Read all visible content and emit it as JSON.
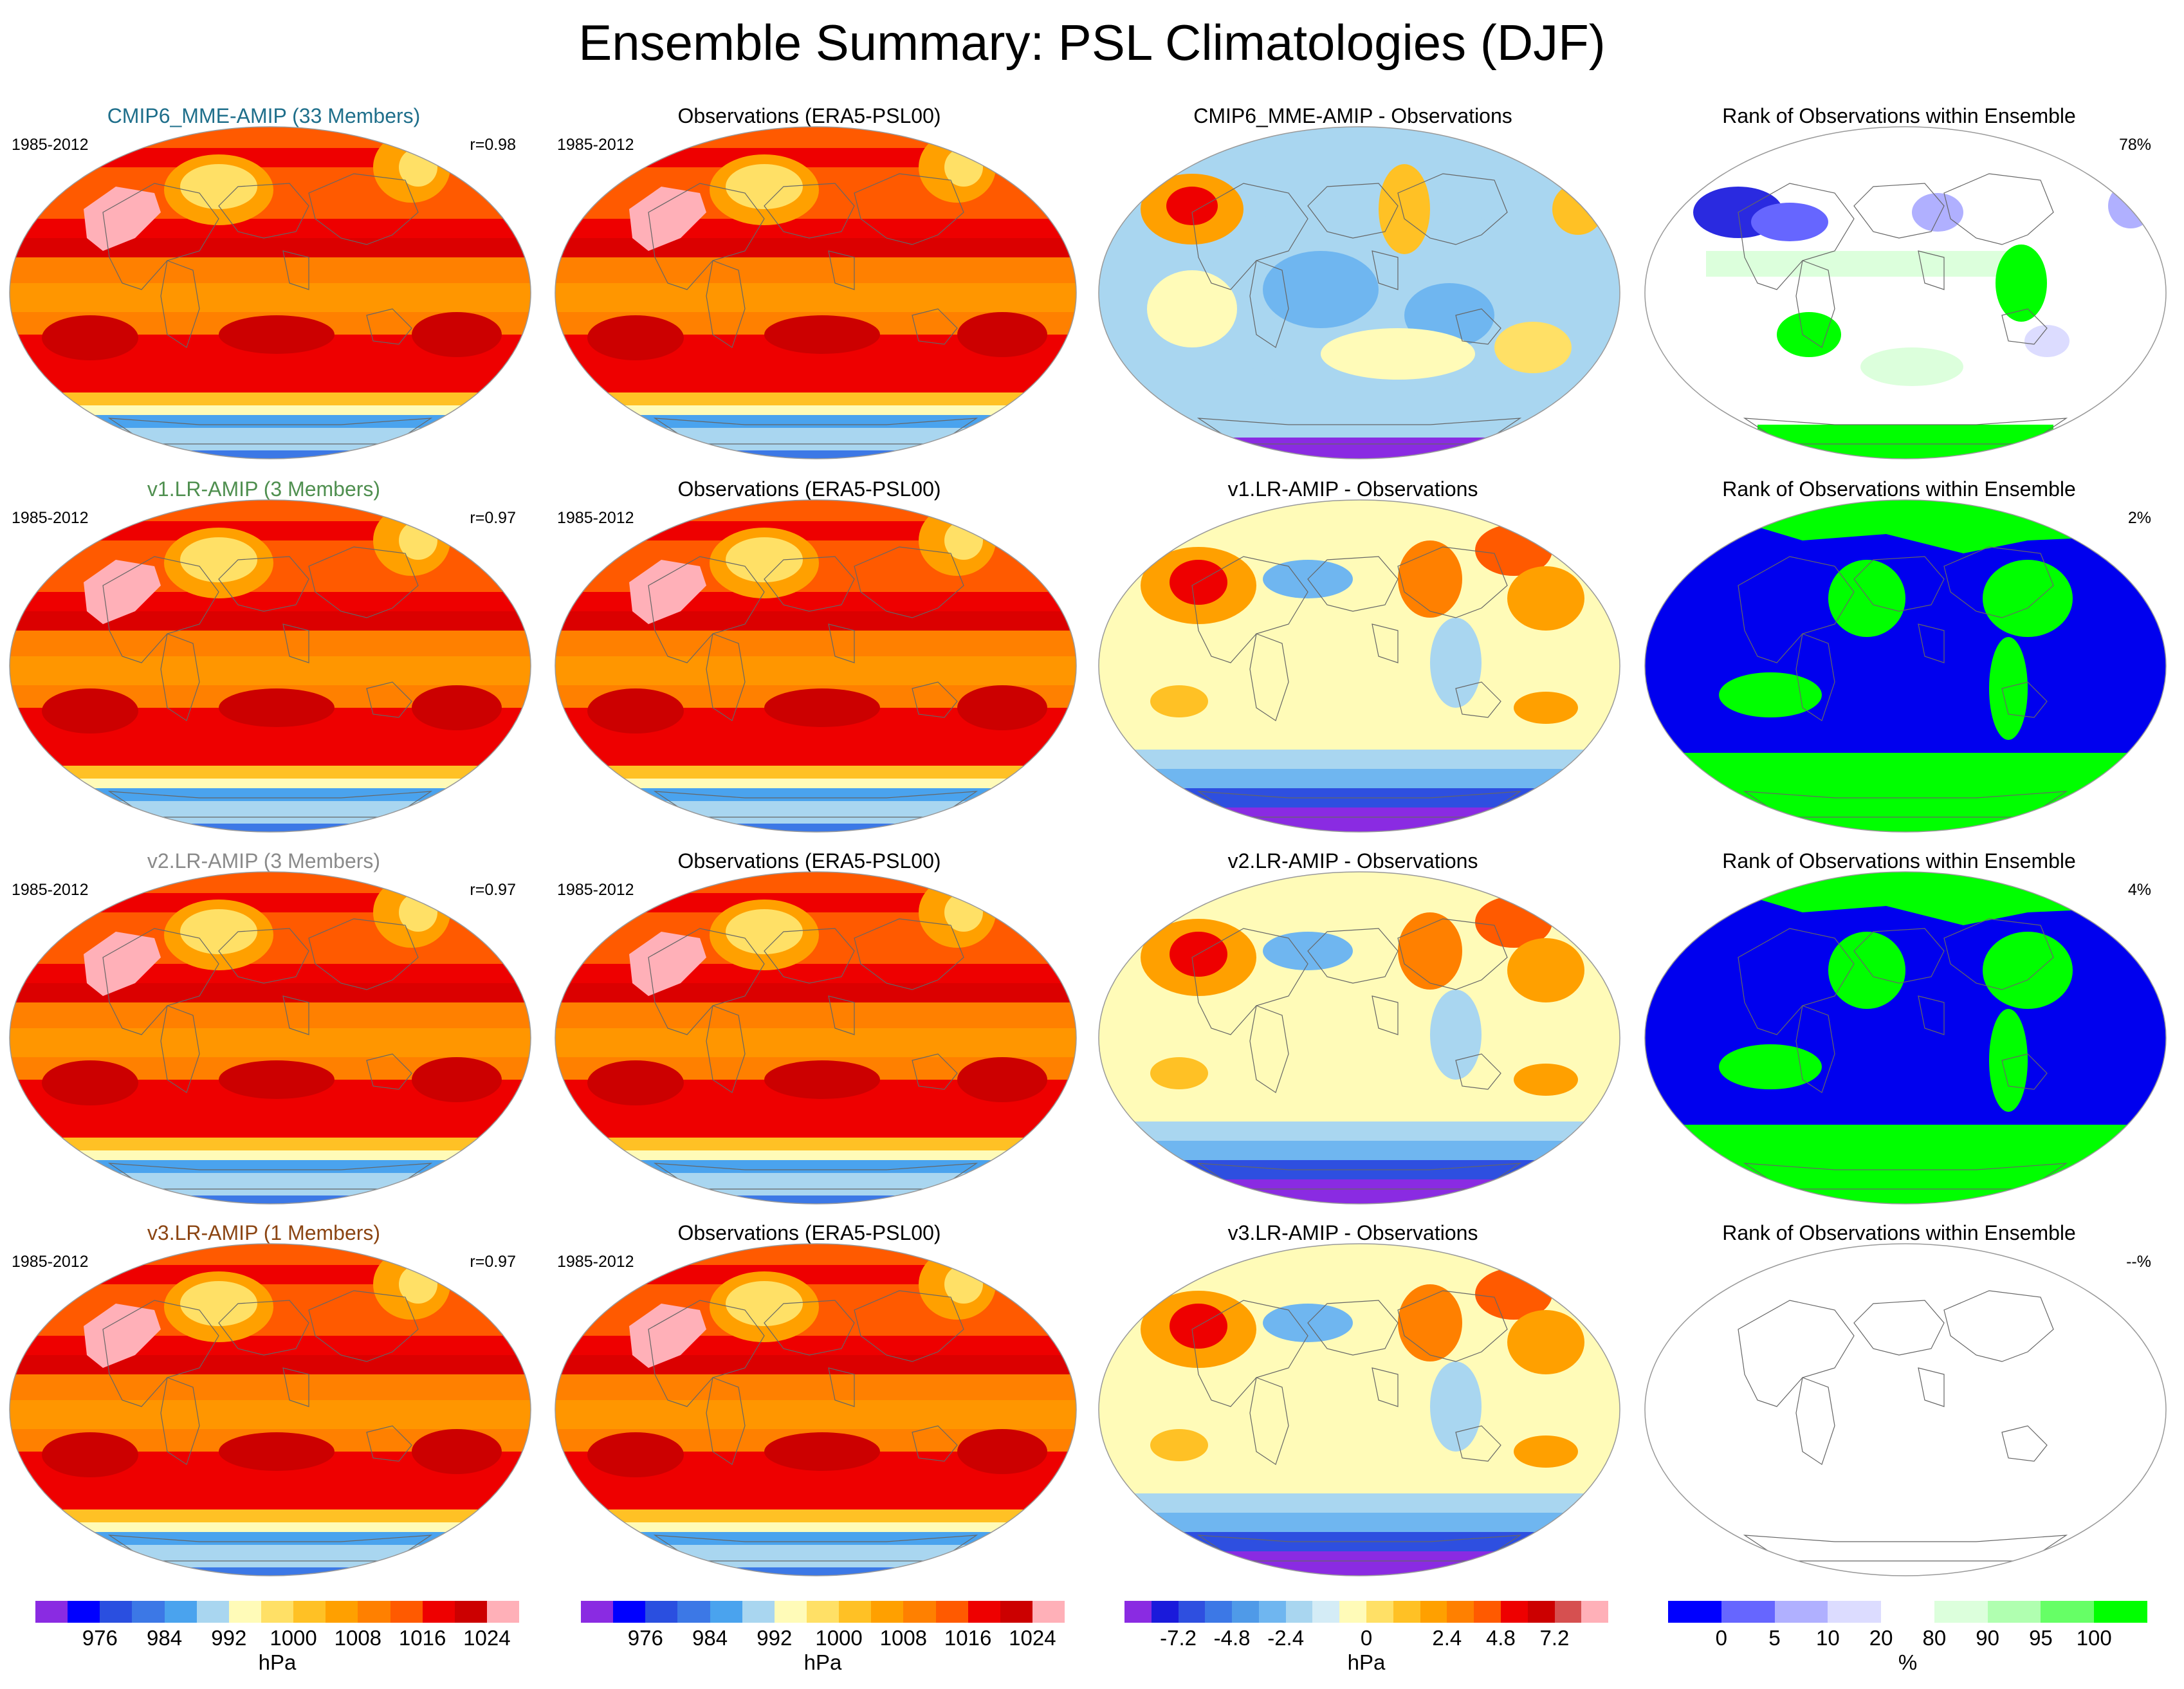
{
  "title": "Ensemble Summary: PSL Climatologies (DJF)",
  "colors": {
    "cmip6": "#1f6f8b",
    "v1": "#4f8f4f",
    "v2": "#8a8a8a",
    "v3": "#8b4513",
    "psl_levels": [
      "#8a2be2",
      "#0000ff",
      "#2a4fe0",
      "#3c78e6",
      "#4aa3ee",
      "#a9d6f0",
      "#fffbb8",
      "#ffe066",
      "#ffc125",
      "#ffa000",
      "#ff8000",
      "#ff5a00",
      "#ee0000",
      "#cc0000",
      "#ffb0b8"
    ],
    "diff_levels": [
      "#8a2be2",
      "#1a1adb",
      "#2e4fe0",
      "#3c78e6",
      "#4f9ae8",
      "#6fb6f0",
      "#a9d6f0",
      "#d4ecf6",
      "#fffbb8",
      "#ffe066",
      "#ffc125",
      "#ffa000",
      "#ff8000",
      "#ff5a00",
      "#ee0000",
      "#cc0000",
      "#d65050",
      "#ffb0b8"
    ],
    "rank_levels": [
      "#0000ff",
      "#6666ff",
      "#b0b0ff",
      "#dcdcff",
      "#ffffff",
      "#dcffdc",
      "#b0ffb0",
      "#66ff66",
      "#00ff00"
    ]
  },
  "rows": [
    {
      "model": {
        "title": "CMIP6_MME-AMIP (33 Members)",
        "period": "1985-2012",
        "r": "r=0.98",
        "color_key": "cmip6"
      },
      "obs": {
        "title": "Observations (ERA5-PSL00)",
        "period": "1985-2012"
      },
      "diff": {
        "title": "CMIP6_MME-AMIP - Observations"
      },
      "rank": {
        "title": "Rank of Observations within Ensemble",
        "pct": "78%",
        "style": "mixed"
      }
    },
    {
      "model": {
        "title": "v1.LR-AMIP (3 Members)",
        "period": "1985-2012",
        "r": "r=0.97",
        "color_key": "v1"
      },
      "obs": {
        "title": "Observations (ERA5-PSL00)",
        "period": "1985-2012"
      },
      "diff": {
        "title": "v1.LR-AMIP - Observations"
      },
      "rank": {
        "title": "Rank of Observations within Ensemble",
        "pct": "2%",
        "style": "blue-green"
      }
    },
    {
      "model": {
        "title": "v2.LR-AMIP (3 Members)",
        "period": "1985-2012",
        "r": "r=0.97",
        "color_key": "v2"
      },
      "obs": {
        "title": "Observations (ERA5-PSL00)",
        "period": "1985-2012"
      },
      "diff": {
        "title": "v2.LR-AMIP - Observations"
      },
      "rank": {
        "title": "Rank of Observations within Ensemble",
        "pct": "4%",
        "style": "blue-green"
      }
    },
    {
      "model": {
        "title": "v3.LR-AMIP (1 Members)",
        "period": "1985-2012",
        "r": "r=0.97",
        "color_key": "v3"
      },
      "obs": {
        "title": "Observations (ERA5-PSL00)",
        "period": "1985-2012"
      },
      "diff": {
        "title": "v3.LR-AMIP - Observations"
      },
      "rank": {
        "title": "Rank of Observations within Ensemble",
        "pct": "--%",
        "style": "empty"
      }
    }
  ],
  "colorbars": [
    {
      "id": "model",
      "palette": "psl_levels",
      "labels": [
        "976",
        "984",
        "992",
        "1000",
        "1008",
        "1016",
        "1024"
      ],
      "unit": "hPa"
    },
    {
      "id": "obs",
      "palette": "psl_levels",
      "labels": [
        "976",
        "984",
        "992",
        "1000",
        "1008",
        "1016",
        "1024"
      ],
      "unit": "hPa"
    },
    {
      "id": "diff",
      "palette": "diff_levels",
      "labels": [
        "-7.2",
        "-4.8",
        "-2.4",
        "0",
        "2.4",
        "4.8",
        "7.2"
      ],
      "unit": "hPa"
    },
    {
      "id": "rank",
      "palette": "rank_levels",
      "labels": [
        "0",
        "5",
        "10",
        "20",
        "80",
        "90",
        "95",
        "100"
      ],
      "unit": "%"
    }
  ]
}
